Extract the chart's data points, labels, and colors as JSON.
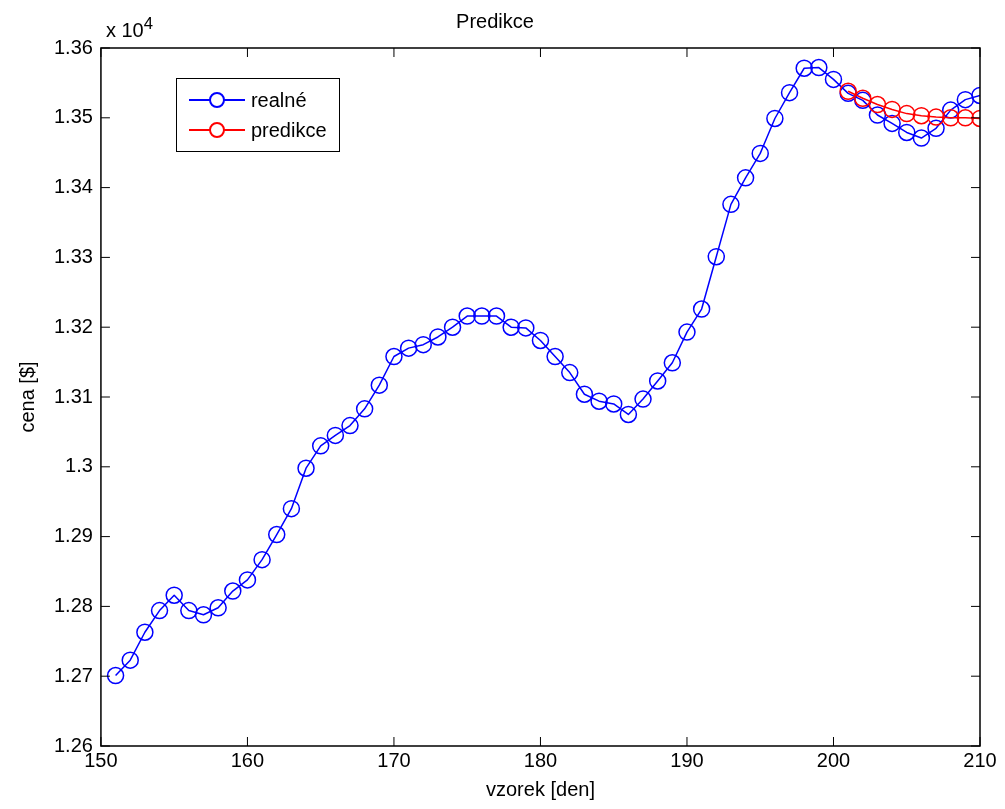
{
  "chart_data": {
    "type": "line",
    "title": "Predikce",
    "xlabel": "vzorek [den]",
    "ylabel": "cena [$]",
    "annotations": [
      "x 10$^{4}$"
    ],
    "xlim": [
      150,
      210
    ],
    "xticks": [
      150,
      160,
      170,
      180,
      190,
      200,
      210
    ],
    "ylim": [
      1.26,
      1.36
    ],
    "yticks": [
      1.26,
      1.27,
      1.28,
      1.29,
      1.3,
      1.31,
      1.32,
      1.33,
      1.34,
      1.35,
      1.36
    ],
    "grid": false,
    "legend": "top left",
    "marker": "circle",
    "line_style": "solid",
    "series": [
      {
        "name": "realné",
        "color": "#0000ff",
        "x": [
          151,
          152,
          153,
          154,
          155,
          156,
          157,
          158,
          159,
          160,
          161,
          162,
          163,
          164,
          165,
          166,
          167,
          168,
          169,
          170,
          171,
          172,
          173,
          174,
          175,
          176,
          177,
          178,
          179,
          180,
          181,
          182,
          183,
          184,
          185,
          186,
          187,
          188,
          189,
          190,
          191,
          192,
          193,
          194,
          195,
          196,
          197,
          198,
          199,
          200,
          201,
          202,
          203,
          204,
          205,
          206,
          207,
          208,
          209,
          210
        ],
        "values": [
          1.2701,
          1.2723,
          1.2763,
          1.2794,
          1.2816,
          1.2794,
          1.2788,
          1.2798,
          1.2822,
          1.2838,
          1.2867,
          1.2903,
          1.294,
          1.2998,
          1.303,
          1.3045,
          1.3059,
          1.3083,
          1.3117,
          1.3158,
          1.317,
          1.3175,
          1.3186,
          1.32,
          1.3216,
          1.3216,
          1.3216,
          1.32,
          1.3199,
          1.3181,
          1.3158,
          1.3135,
          1.3104,
          1.3094,
          1.309,
          1.3075,
          1.3097,
          1.3123,
          1.3149,
          1.3193,
          1.3226,
          1.3301,
          1.3376,
          1.3414,
          1.3449,
          1.3499,
          1.3536,
          1.3571,
          1.3572,
          1.3555,
          1.3535,
          1.3525,
          1.3504,
          1.3492,
          1.3479,
          1.3471,
          1.3485,
          1.3511,
          1.3526,
          1.3532
        ]
      },
      {
        "name": "predikce",
        "color": "#ff0000",
        "x": [
          201,
          202,
          203,
          204,
          205,
          206,
          207,
          208,
          209,
          210
        ],
        "values": [
          1.3538,
          1.3528,
          1.3519,
          1.3512,
          1.3506,
          1.3503,
          1.3501,
          1.35,
          1.35,
          1.3499
        ]
      }
    ]
  }
}
